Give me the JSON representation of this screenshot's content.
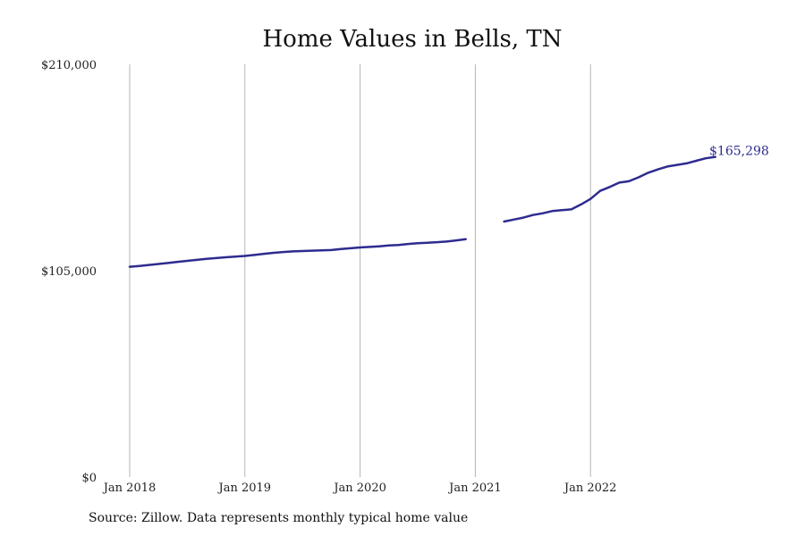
{
  "source_note": "Source: Zillow. Data represents monthly typical home value",
  "colors": {
    "line": "#2e2b8f",
    "grid": "#b5b5b5"
  },
  "chart_data": {
    "type": "line",
    "title": "Home Values in Bells, TN",
    "xlabel": "",
    "ylabel": "",
    "ylim": [
      0,
      210000
    ],
    "y_ticks": [
      0,
      105000,
      210000
    ],
    "y_tick_labels": [
      "$0",
      "$105,000",
      "$210,000"
    ],
    "x_ticks": [
      "2018-01",
      "2019-01",
      "2020-01",
      "2021-01",
      "2022-01"
    ],
    "x_tick_labels": [
      "Jan 2018",
      "Jan 2019",
      "Jan 2020",
      "Jan 2021",
      "Jan 2022"
    ],
    "x_range": [
      "2018-01",
      "2023-01"
    ],
    "grid": {
      "vertical": true,
      "horizontal": false
    },
    "end_label": "$165,298",
    "series": [
      {
        "points": [
          [
            "2018-01",
            107000
          ],
          [
            "2018-02",
            107400
          ],
          [
            "2018-03",
            107900
          ],
          [
            "2018-04",
            108400
          ],
          [
            "2018-05",
            108900
          ],
          [
            "2018-06",
            109500
          ],
          [
            "2018-07",
            110000
          ],
          [
            "2018-08",
            110500
          ],
          [
            "2018-09",
            111000
          ],
          [
            "2018-10",
            111400
          ],
          [
            "2018-11",
            111800
          ],
          [
            "2018-12",
            112200
          ],
          [
            "2019-01",
            112500
          ],
          [
            "2019-02",
            113000
          ],
          [
            "2019-03",
            113600
          ],
          [
            "2019-04",
            114100
          ],
          [
            "2019-05",
            114500
          ],
          [
            "2019-06",
            114800
          ],
          [
            "2019-07",
            115000
          ],
          [
            "2019-08",
            115200
          ],
          [
            "2019-09",
            115300
          ],
          [
            "2019-10",
            115500
          ],
          [
            "2019-11",
            116000
          ],
          [
            "2019-12",
            116400
          ],
          [
            "2020-01",
            116800
          ],
          [
            "2020-02",
            117100
          ],
          [
            "2020-03",
            117400
          ],
          [
            "2020-04",
            117800
          ],
          [
            "2020-05",
            118100
          ],
          [
            "2020-06",
            118600
          ],
          [
            "2020-07",
            119000
          ],
          [
            "2020-08",
            119200
          ],
          [
            "2020-09",
            119500
          ],
          [
            "2020-10",
            119800
          ],
          [
            "2020-11",
            120400
          ],
          [
            "2020-12",
            121000
          ],
          [
            "2021-01",
            null
          ],
          [
            "2021-02",
            null
          ],
          [
            "2021-03",
            null
          ],
          [
            "2021-04",
            130000
          ],
          [
            "2021-05",
            131000
          ],
          [
            "2021-06",
            132000
          ],
          [
            "2021-07",
            133300
          ],
          [
            "2021-08",
            134200
          ],
          [
            "2021-09",
            135300
          ],
          [
            "2021-10",
            135800
          ],
          [
            "2021-11",
            136200
          ],
          [
            "2021-12",
            138700
          ],
          [
            "2022-01",
            141500
          ],
          [
            "2022-02",
            145600
          ],
          [
            "2022-03",
            147600
          ],
          [
            "2022-04",
            149800
          ],
          [
            "2022-05",
            150500
          ],
          [
            "2022-06",
            152500
          ],
          [
            "2022-07",
            154800
          ],
          [
            "2022-08",
            156500
          ],
          [
            "2022-09",
            158000
          ],
          [
            "2022-10",
            158800
          ],
          [
            "2022-11",
            159600
          ],
          [
            "2022-12",
            160900
          ],
          [
            "2023-01",
            162200
          ],
          [
            "2023-02",
            162900
          ]
        ]
      }
    ]
  }
}
